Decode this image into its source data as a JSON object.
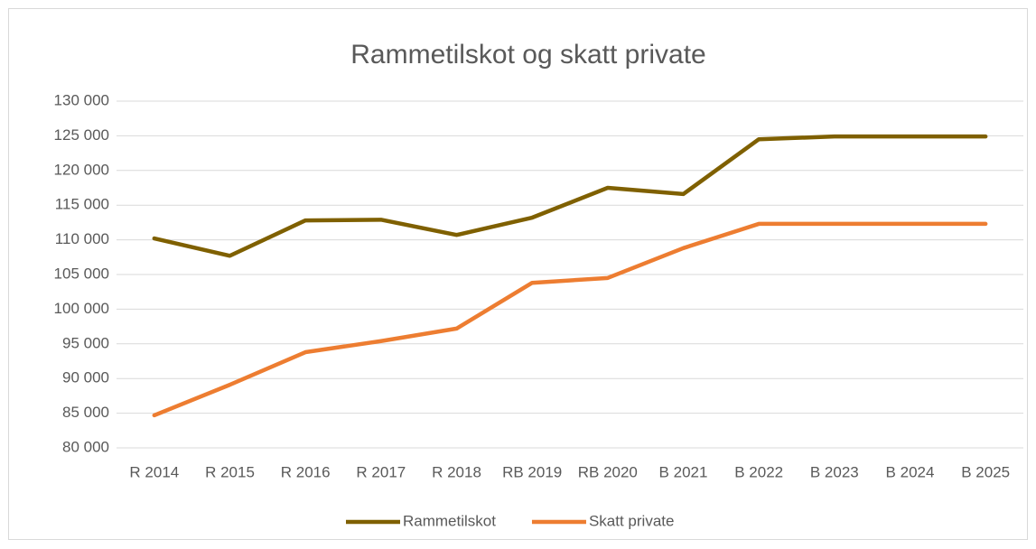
{
  "chart_data": {
    "type": "line",
    "title": "Rammetilskot og skatt private",
    "categories": [
      "R 2014",
      "R 2015",
      "R 2016",
      "R 2017",
      "R 2018",
      "RB 2019",
      "RB 2020",
      "B 2021",
      "B 2022",
      "B 2023",
      "B 2024",
      "B 2025"
    ],
    "series": [
      {
        "name": "Rammetilskot",
        "color": "#7f6000",
        "values": [
          110200,
          107700,
          112800,
          112900,
          110700,
          113200,
          117500,
          116600,
          124500,
          124900,
          124900,
          124900
        ]
      },
      {
        "name": "Skatt private",
        "color": "#ed7d31",
        "values": [
          84700,
          89100,
          93800,
          95400,
          97200,
          103800,
          104500,
          108800,
          112300,
          112300,
          112300,
          112300
        ]
      }
    ],
    "ylim": [
      80000,
      130000
    ],
    "yticks": [
      {
        "value": 80000,
        "label": "80 000"
      },
      {
        "value": 85000,
        "label": "85 000"
      },
      {
        "value": 90000,
        "label": "90 000"
      },
      {
        "value": 95000,
        "label": "95 000"
      },
      {
        "value": 100000,
        "label": "100 000"
      },
      {
        "value": 105000,
        "label": "105 000"
      },
      {
        "value": 110000,
        "label": "110 000"
      },
      {
        "value": 115000,
        "label": "115 000"
      },
      {
        "value": 120000,
        "label": "120 000"
      },
      {
        "value": 125000,
        "label": "125 000"
      },
      {
        "value": 130000,
        "label": "130 000"
      }
    ],
    "grid": true,
    "legend": "bottom"
  }
}
